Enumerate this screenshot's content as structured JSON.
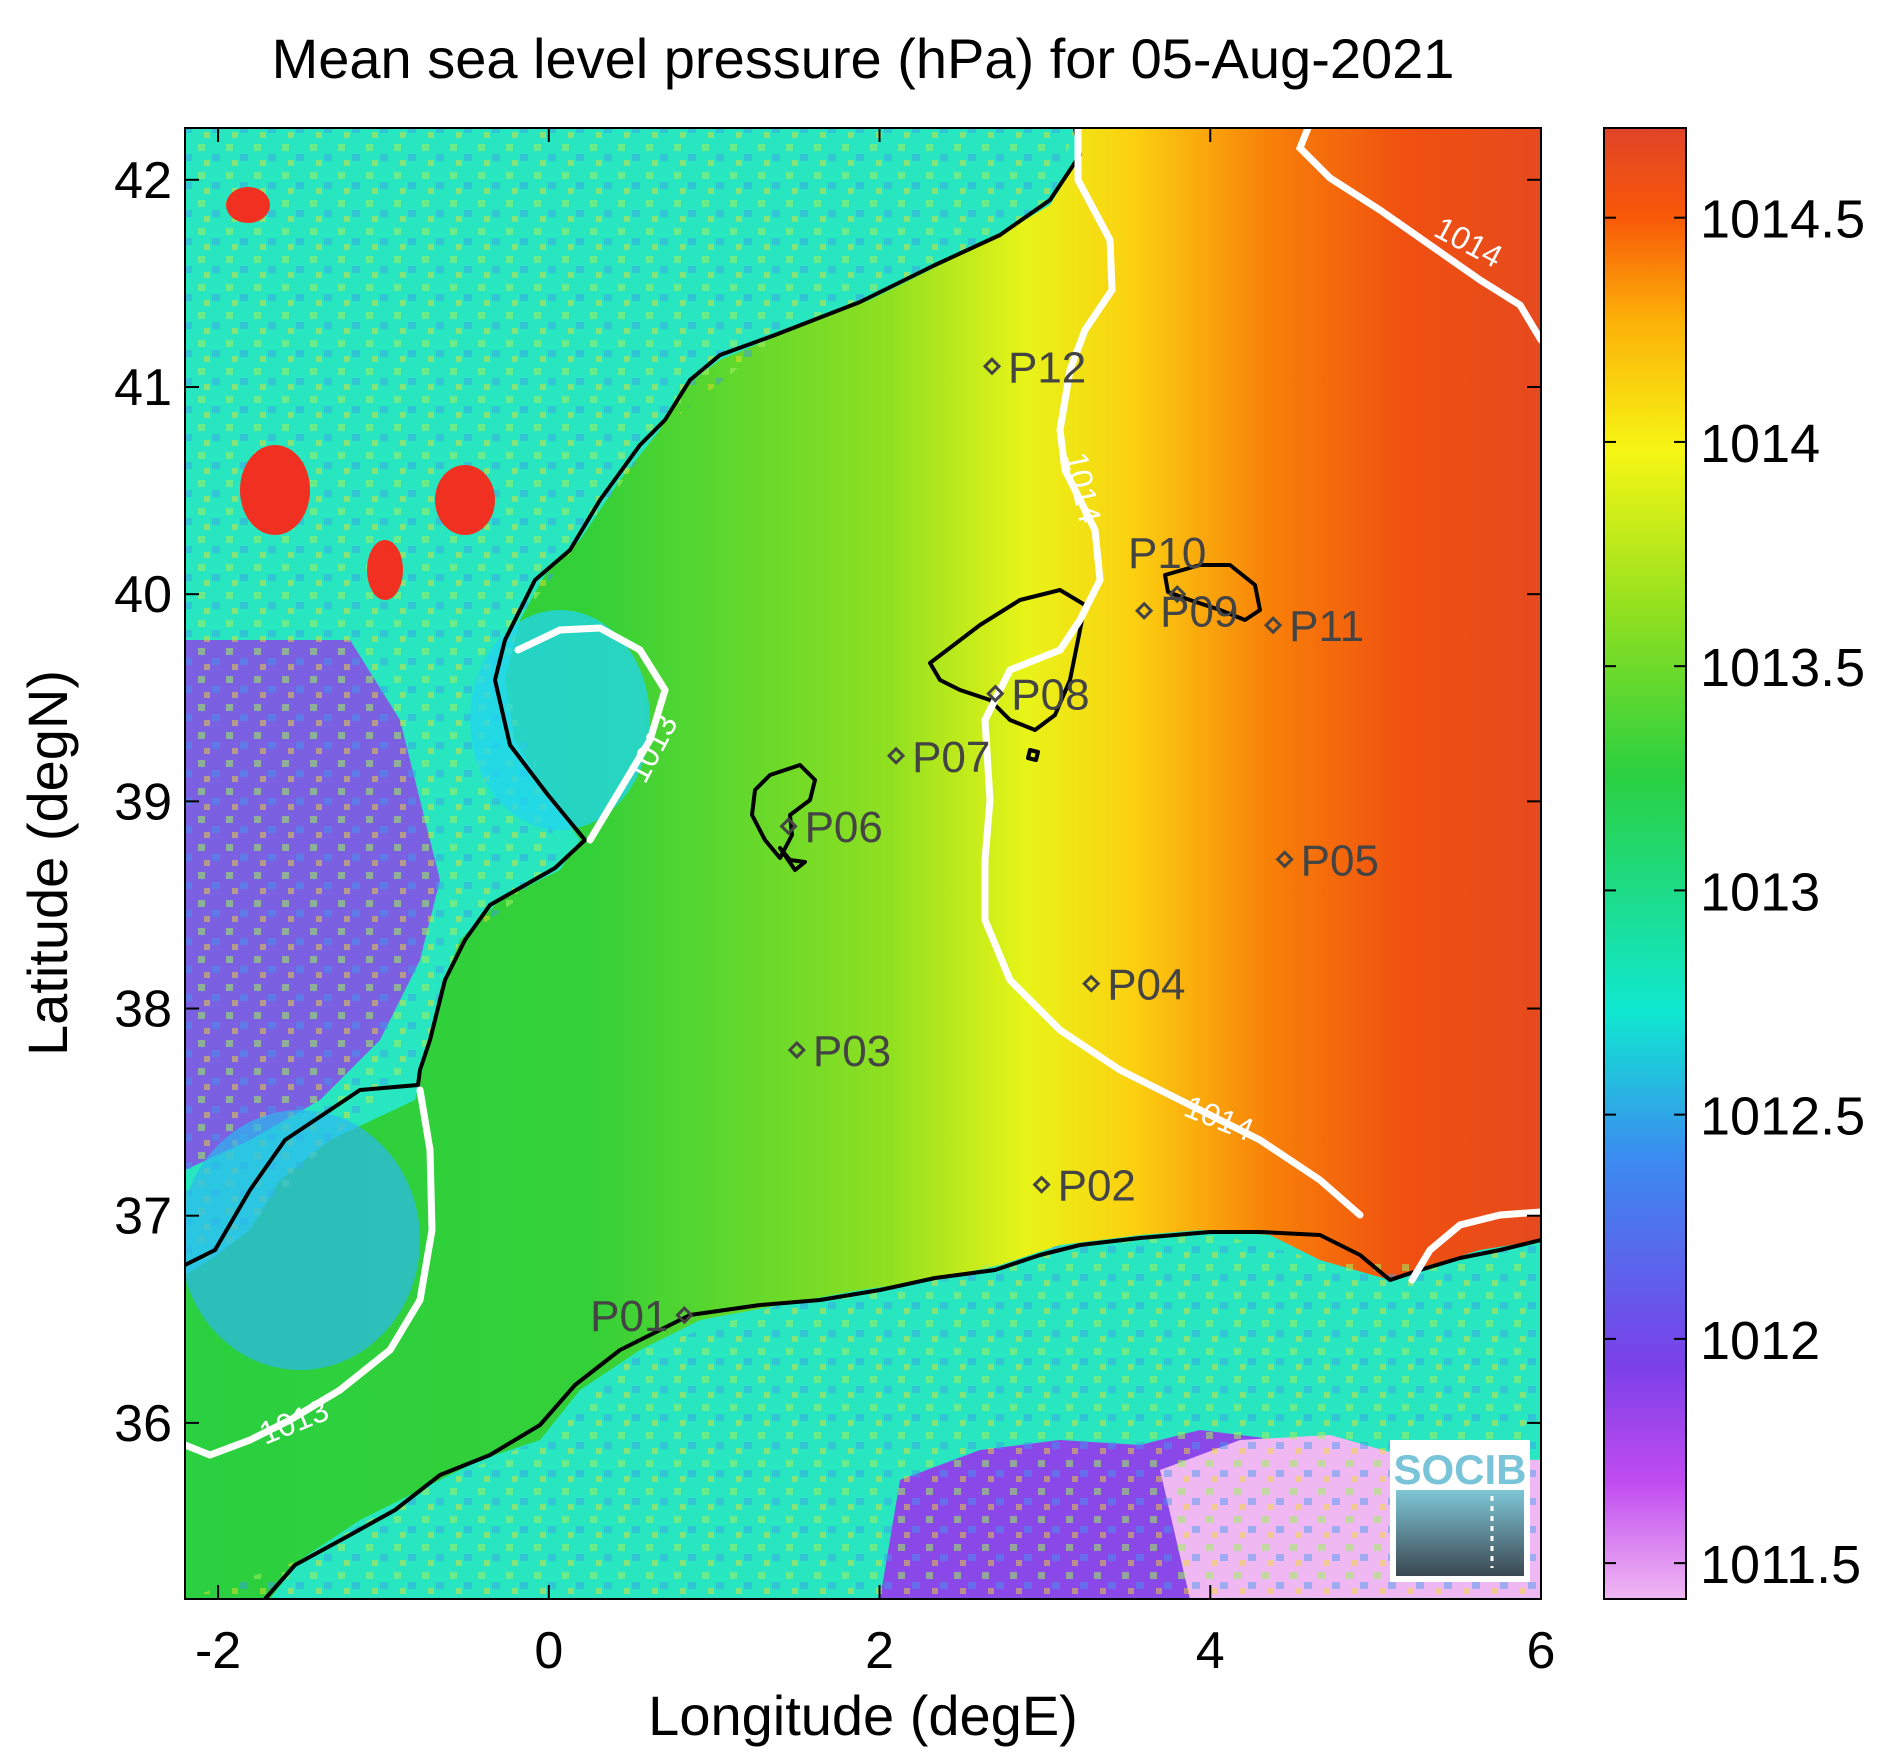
{
  "title": "Mean sea level pressure (hPa) for 05-Aug-2021",
  "axes": {
    "xlabel": "Longitude (degE)",
    "ylabel": "Latitude (degN)",
    "xlim": [
      -2.2,
      6.0
    ],
    "ylim": [
      35.15,
      42.25
    ],
    "xticks": [
      {
        "v": -2,
        "label": "-2"
      },
      {
        "v": 0,
        "label": "0"
      },
      {
        "v": 2,
        "label": "2"
      },
      {
        "v": 4,
        "label": "4"
      },
      {
        "v": 6,
        "label": "6"
      }
    ],
    "yticks": [
      {
        "v": 36,
        "label": "36"
      },
      {
        "v": 37,
        "label": "37"
      },
      {
        "v": 38,
        "label": "38"
      },
      {
        "v": 39,
        "label": "39"
      },
      {
        "v": 40,
        "label": "40"
      },
      {
        "v": 41,
        "label": "41"
      },
      {
        "v": 42,
        "label": "42"
      }
    ]
  },
  "colorbar": {
    "range": [
      1011.42,
      1014.7
    ],
    "ticks": [
      {
        "v": 1011.5,
        "label": "1011.5"
      },
      {
        "v": 1012,
        "label": "1012"
      },
      {
        "v": 1012.5,
        "label": "1012.5"
      },
      {
        "v": 1013,
        "label": "1013"
      },
      {
        "v": 1013.5,
        "label": "1013.5"
      },
      {
        "v": 1014,
        "label": "1014"
      },
      {
        "v": 1014.5,
        "label": "1014.5"
      }
    ],
    "stops": [
      {
        "v": 0.0,
        "color": "#f0b8f2"
      },
      {
        "v": 0.08,
        "color": "#c04cf0"
      },
      {
        "v": 0.16,
        "color": "#7a40e8"
      },
      {
        "v": 0.3,
        "color": "#3a8cf0"
      },
      {
        "v": 0.4,
        "color": "#10e8d0"
      },
      {
        "v": 0.56,
        "color": "#2ad040"
      },
      {
        "v": 0.67,
        "color": "#90e020"
      },
      {
        "v": 0.78,
        "color": "#f6f614"
      },
      {
        "v": 0.87,
        "color": "#fcb008"
      },
      {
        "v": 0.94,
        "color": "#f85808"
      },
      {
        "v": 1.0,
        "color": "#e04428"
      }
    ]
  },
  "contours": [
    {
      "value": 1013,
      "label": "1013"
    },
    {
      "value": 1013,
      "label": "1013"
    },
    {
      "value": 1014,
      "label": "1014"
    },
    {
      "value": 1014,
      "label": "1014"
    },
    {
      "value": 1014,
      "label": "1014"
    }
  ],
  "points": [
    {
      "label": "P01",
      "lon": 0.82,
      "lat": 36.52
    },
    {
      "label": "P02",
      "lon": 2.98,
      "lat": 37.15
    },
    {
      "label": "P03",
      "lon": 1.5,
      "lat": 37.8
    },
    {
      "label": "P04",
      "lon": 3.28,
      "lat": 38.12
    },
    {
      "label": "P05",
      "lon": 4.45,
      "lat": 38.72
    },
    {
      "label": "P06",
      "lon": 1.45,
      "lat": 38.88
    },
    {
      "label": "P07",
      "lon": 2.1,
      "lat": 39.22
    },
    {
      "label": "P08",
      "lon": 2.7,
      "lat": 39.52
    },
    {
      "label": "P09",
      "lon": 3.6,
      "lat": 39.92
    },
    {
      "label": "P10",
      "lon": 3.8,
      "lat": 40.0
    },
    {
      "label": "P11",
      "lon": 4.38,
      "lat": 39.85
    },
    {
      "label": "P12",
      "lon": 2.68,
      "lat": 41.1
    }
  ],
  "logo": "SOCIB",
  "colors": {
    "coastline": "#000000",
    "contour": "#ffffff",
    "marker_label": "#444444"
  }
}
